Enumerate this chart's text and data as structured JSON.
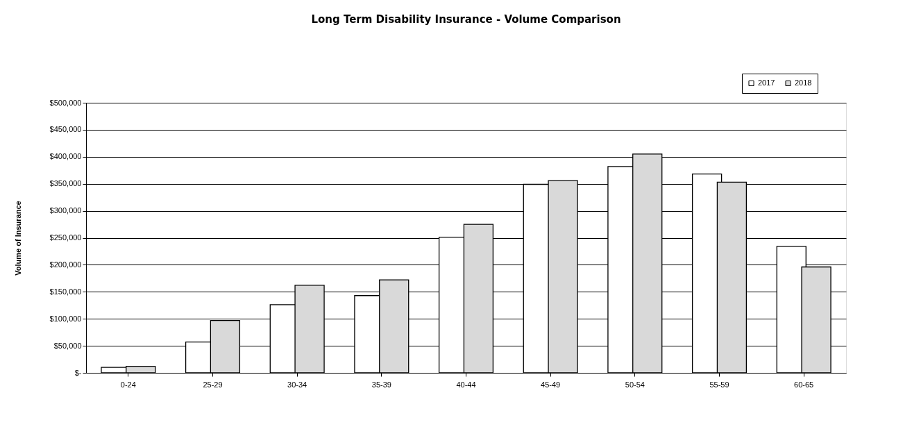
{
  "chart_data": {
    "type": "bar",
    "title": "Long Term Disability Insurance - Volume Comparison",
    "ylabel": "Volume of Insurance",
    "categories": [
      "0-24",
      "25-29",
      "30-34",
      "35-39",
      "40-44",
      "45-49",
      "50-54",
      "55-59",
      "60-65"
    ],
    "series": [
      {
        "name": "2017",
        "color": "#ffffff",
        "values": [
          10000,
          57000,
          126000,
          143000,
          251000,
          349000,
          382000,
          368000,
          234000
        ]
      },
      {
        "name": "2018",
        "color": "#d9d9d9",
        "values": [
          12000,
          97000,
          162000,
          172000,
          275000,
          356000,
          405000,
          353000,
          196000
        ]
      }
    ],
    "ylim": [
      0,
      500000
    ],
    "yticks": [
      {
        "value": 0,
        "label": "$-"
      },
      {
        "value": 50000,
        "label": "$50,000"
      },
      {
        "value": 100000,
        "label": "$100,000"
      },
      {
        "value": 150000,
        "label": "$150,000"
      },
      {
        "value": 200000,
        "label": "$200,000"
      },
      {
        "value": 250000,
        "label": "$250,000"
      },
      {
        "value": 300000,
        "label": "$300,000"
      },
      {
        "value": 350000,
        "label": "$350,000"
      },
      {
        "value": 400000,
        "label": "$400,000"
      },
      {
        "value": 450000,
        "label": "$450,000"
      },
      {
        "value": 500000,
        "label": "$500,000"
      }
    ],
    "grid": "y",
    "legend": "top right"
  }
}
